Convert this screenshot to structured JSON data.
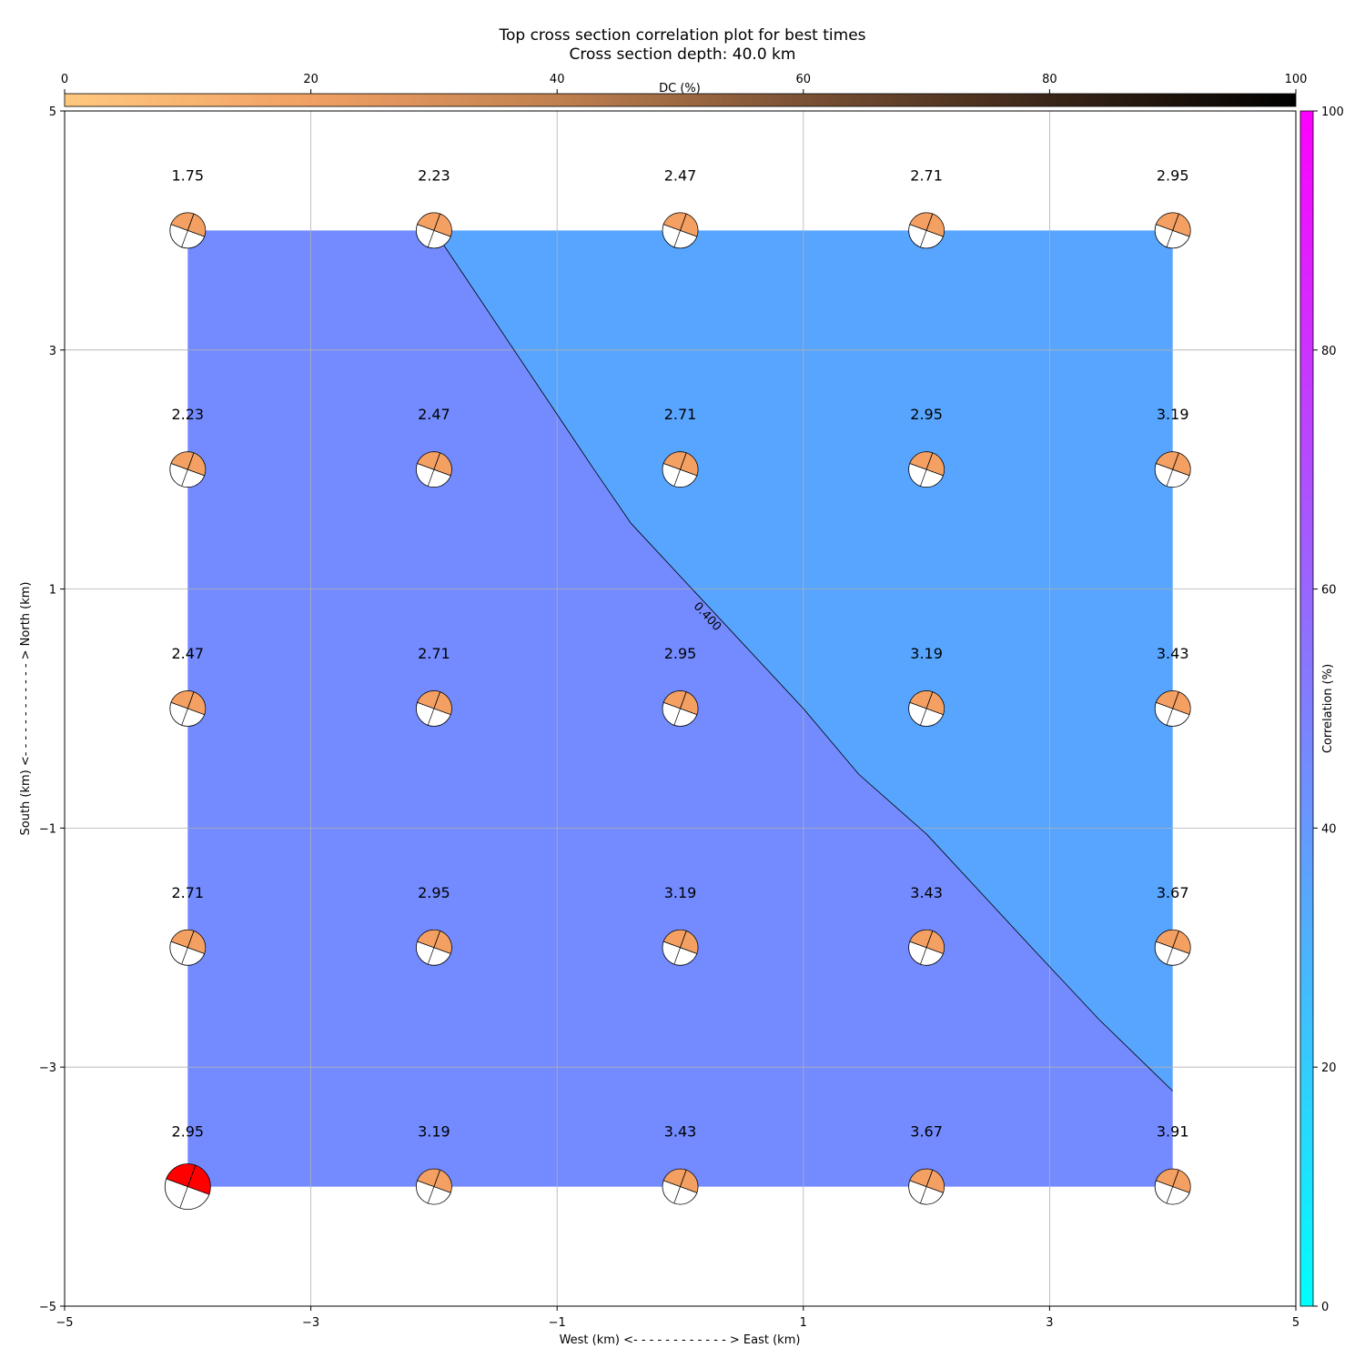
{
  "chart_data": {
    "type": "heatmap",
    "title": "Top cross section correlation plot for best times",
    "subtitle": "Cross section depth: 40.0 km",
    "xlabel": "West (km) <- - - - - - - - - - - - > East (km)",
    "ylabel": "South (km) <- - - - - - - - - - - - > North (km)",
    "xlim": [
      -5,
      5
    ],
    "ylim": [
      -5,
      5
    ],
    "x_ticks": [
      -5,
      -3,
      -1,
      1,
      3,
      5
    ],
    "y_ticks": [
      -5,
      -3,
      -1,
      1,
      3,
      5
    ],
    "x_tick_labels": [
      "−5",
      "−3",
      "−1",
      "1",
      "3",
      "5"
    ],
    "y_tick_labels": [
      "−5",
      "−3",
      "−1",
      "1",
      "3",
      "5"
    ],
    "grid": true,
    "grid_x": [
      -4,
      -2,
      0,
      2,
      4
    ],
    "grid_y": [
      4,
      2,
      0,
      -2,
      -4
    ],
    "time_labels": [
      [
        "1.75",
        "2.23",
        "2.47",
        "2.71",
        "2.95"
      ],
      [
        "2.23",
        "2.47",
        "2.71",
        "2.95",
        "3.19"
      ],
      [
        "2.47",
        "2.71",
        "2.95",
        "3.19",
        "3.43"
      ],
      [
        "2.71",
        "2.95",
        "3.19",
        "3.43",
        "3.67"
      ],
      [
        "2.95",
        "3.19",
        "3.43",
        "3.67",
        "3.91"
      ]
    ],
    "best_solution": {
      "x": -4,
      "y": -4,
      "color": "#ff0000"
    },
    "contour": {
      "level_label": "0.400",
      "line": [
        [
          -2,
          4
        ],
        [
          -0.7,
          2
        ],
        [
          -0.4,
          1.55
        ],
        [
          1,
          0
        ],
        [
          1.45,
          -0.55
        ],
        [
          2,
          -1.05
        ],
        [
          2.9,
          -2.05
        ],
        [
          3.4,
          -2.6
        ],
        [
          4,
          -3.2
        ]
      ],
      "color_low": "#738bff",
      "color_high": "#58a5ff"
    },
    "dc_colorbar": {
      "label": "DC (%)",
      "ticks": [
        0,
        20,
        40,
        60,
        80,
        100
      ],
      "colors": [
        "#ffc87f",
        "#f0a064",
        "#c0804f",
        "#7a5134",
        "#3a2618",
        "#000000"
      ]
    },
    "correlation_colorbar": {
      "label": "Correlation (%)",
      "ticks": [
        0,
        20,
        40,
        60,
        80,
        100
      ],
      "colors": [
        "#00ffff",
        "#ff00ff"
      ]
    },
    "beachball_color": "#f4a062"
  }
}
